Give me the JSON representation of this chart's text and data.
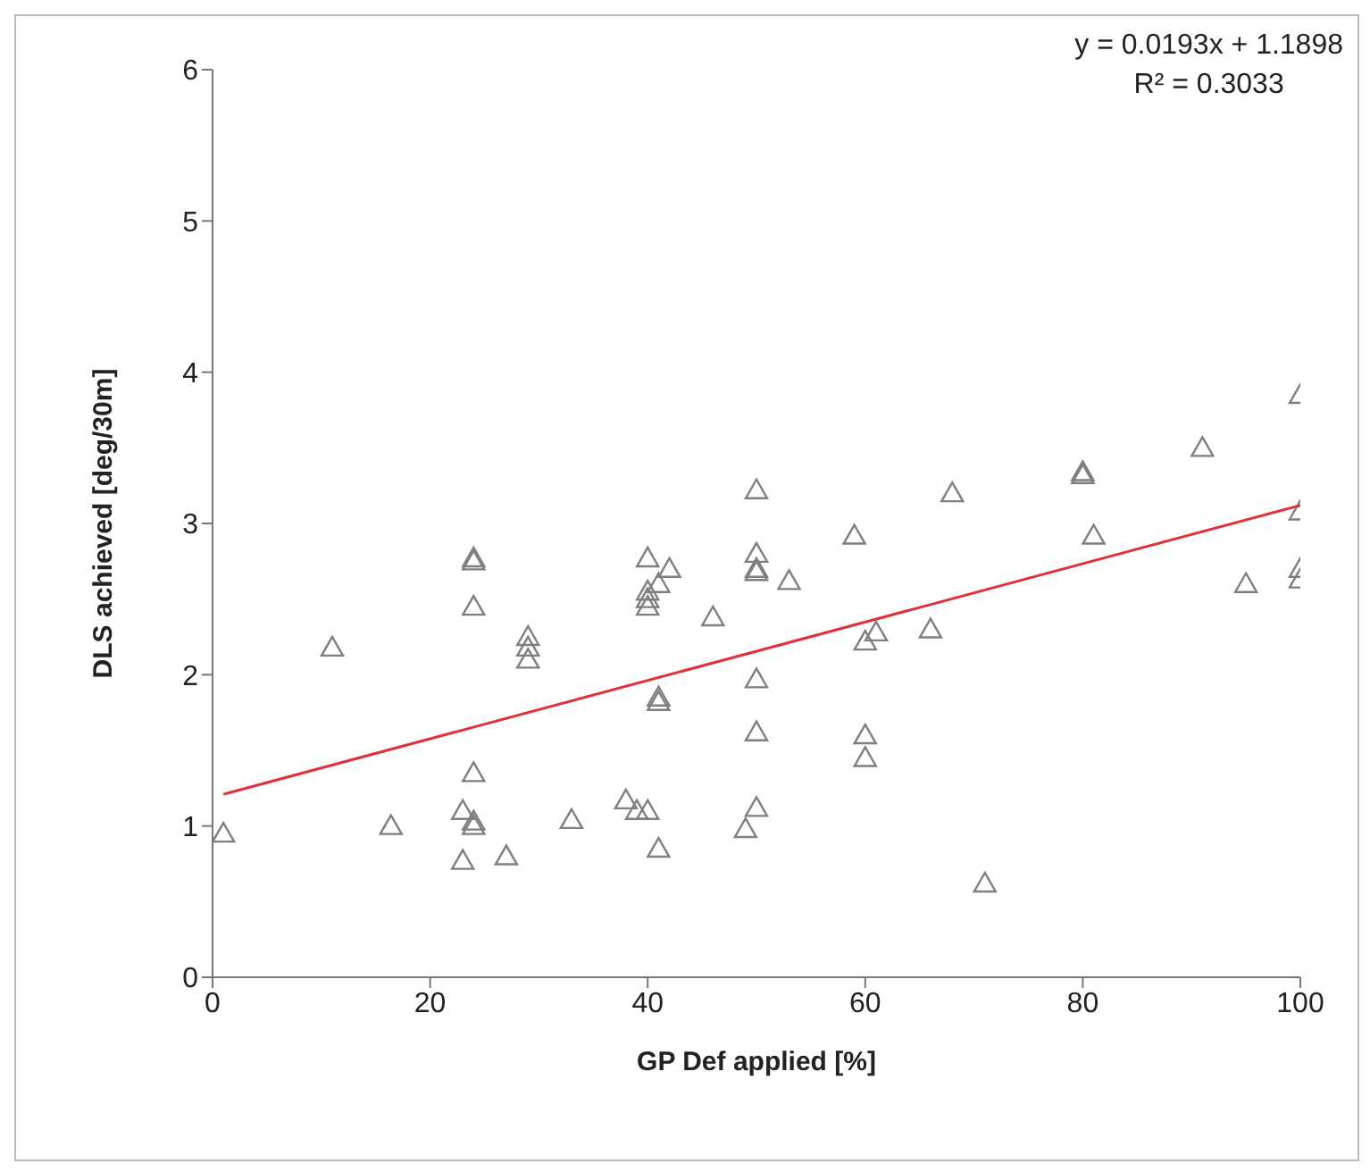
{
  "chart_data": {
    "type": "scatter",
    "xlabel": "GP Def applied [%]",
    "ylabel": "DLS achieved [deg/30m]",
    "xlim": [
      0,
      100
    ],
    "ylim": [
      0,
      6
    ],
    "xticks": [
      0,
      20,
      40,
      60,
      80,
      100
    ],
    "yticks": [
      0,
      1,
      2,
      3,
      4,
      5,
      6
    ],
    "marker": "triangle",
    "annotations": [
      "y = 0.0193x + 1.1898",
      "R² = 0.3033"
    ],
    "series": [
      {
        "color": "#7f7f7f",
        "x": [
          1,
          16.4,
          11,
          23,
          23,
          24,
          24,
          24,
          24,
          24,
          24,
          27,
          29,
          29,
          29,
          33,
          38,
          39,
          40,
          40,
          40,
          40,
          40,
          41,
          41,
          41,
          41,
          42,
          46,
          49,
          50,
          50,
          50,
          50,
          50,
          50,
          50,
          53,
          59,
          60,
          60,
          60,
          61,
          66,
          68,
          71,
          80,
          80,
          81,
          91,
          95,
          100,
          100,
          100,
          100
        ],
        "values": [
          0.95,
          1.0,
          2.18,
          1.1,
          0.77,
          1.03,
          1.0,
          1.35,
          2.77,
          2.75,
          2.45,
          0.8,
          2.25,
          2.18,
          2.1,
          1.04,
          1.17,
          1.1,
          1.1,
          2.77,
          2.45,
          2.5,
          2.55,
          2.6,
          1.85,
          1.82,
          0.85,
          2.7,
          2.38,
          0.98,
          3.22,
          2.8,
          2.7,
          2.68,
          1.97,
          1.62,
          1.12,
          2.62,
          2.92,
          2.22,
          1.6,
          1.45,
          2.28,
          2.3,
          3.2,
          0.62,
          3.32,
          3.34,
          2.92,
          3.5,
          2.6,
          3.85,
          3.08,
          2.7,
          2.63
        ]
      },
      {
        "type": "line",
        "color": "#e0303a",
        "marker": "none",
        "x": [
          1,
          100
        ],
        "values": [
          1.21,
          3.12
        ]
      }
    ]
  }
}
